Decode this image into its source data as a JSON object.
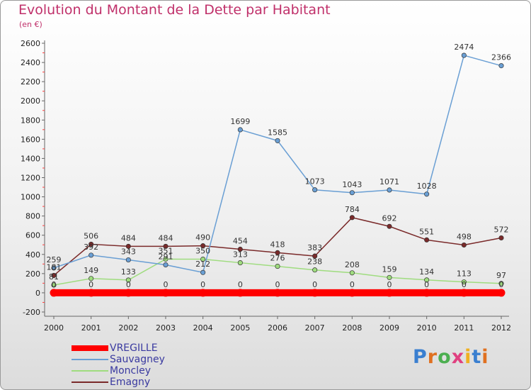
{
  "title": "Evolution du Montant de la Dette par Habitant",
  "unit": "(en €)",
  "logo": "Proxiti",
  "chart_data": {
    "type": "line",
    "categories": [
      "2000",
      "2001",
      "2002",
      "2003",
      "2004",
      "2005",
      "2006",
      "2007",
      "2008",
      "2009",
      "2010",
      "2011",
      "2012"
    ],
    "ylim": [
      -200,
      2600
    ],
    "yticks": [
      -200,
      0,
      200,
      400,
      600,
      800,
      1000,
      1200,
      1400,
      1600,
      1800,
      2000,
      2200,
      2400,
      2600
    ],
    "grid": false,
    "legend_position": "bottom-left",
    "series": [
      {
        "name": "VREGILLE",
        "color": "#ff0000",
        "labels": true,
        "values": [
          0,
          0,
          0,
          0,
          0,
          0,
          0,
          0,
          0,
          0,
          0,
          0,
          0
        ]
      },
      {
        "name": "Sauvagney",
        "color": "#6a9fd4",
        "labels": true,
        "values": [
          259,
          392,
          343,
          291,
          212,
          1699,
          1585,
          1073,
          1043,
          1071,
          1028,
          2474,
          2366
        ]
      },
      {
        "name": "Moncley",
        "color": "#9fdc7f",
        "labels": true,
        "values": [
          81,
          149,
          133,
          351,
          350,
          313,
          276,
          238,
          208,
          159,
          134,
          113,
          97
        ]
      },
      {
        "name": "Emagny",
        "color": "#7a2a2a",
        "labels": true,
        "values": [
          181,
          506,
          484,
          484,
          490,
          454,
          418,
          383,
          784,
          692,
          551,
          498,
          572
        ]
      }
    ]
  }
}
